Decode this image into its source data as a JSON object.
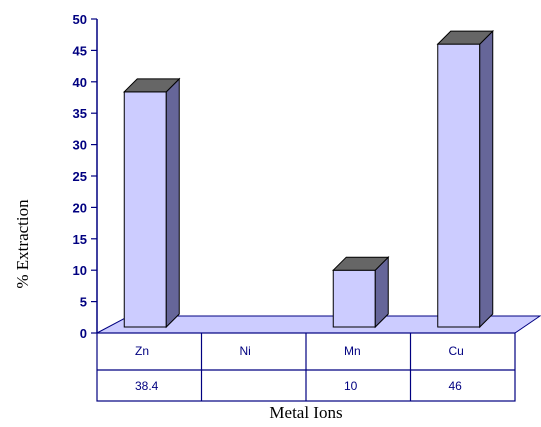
{
  "chart_data": {
    "type": "bar",
    "categories": [
      "Zn",
      "Ni",
      "Mn",
      "Cu"
    ],
    "values": [
      38.4,
      null,
      10,
      46
    ],
    "table_values": [
      "38.4",
      "",
      "10",
      "46"
    ],
    "xlabel": "Metal Ions",
    "ylabel": "% Extraction",
    "ylim": [
      0,
      50
    ],
    "yticks": [
      "0",
      "5",
      "10",
      "15",
      "20",
      "25",
      "30",
      "35",
      "40",
      "45",
      "50"
    ],
    "grid": false,
    "legend": "none",
    "bar_style": "3d",
    "data_table": true,
    "colors": {
      "bar_front": "#ccccff",
      "bar_side": "#666699",
      "bar_top": "#666666",
      "floor": "#ccccff",
      "axis": "#000080",
      "text": "#000080"
    }
  }
}
